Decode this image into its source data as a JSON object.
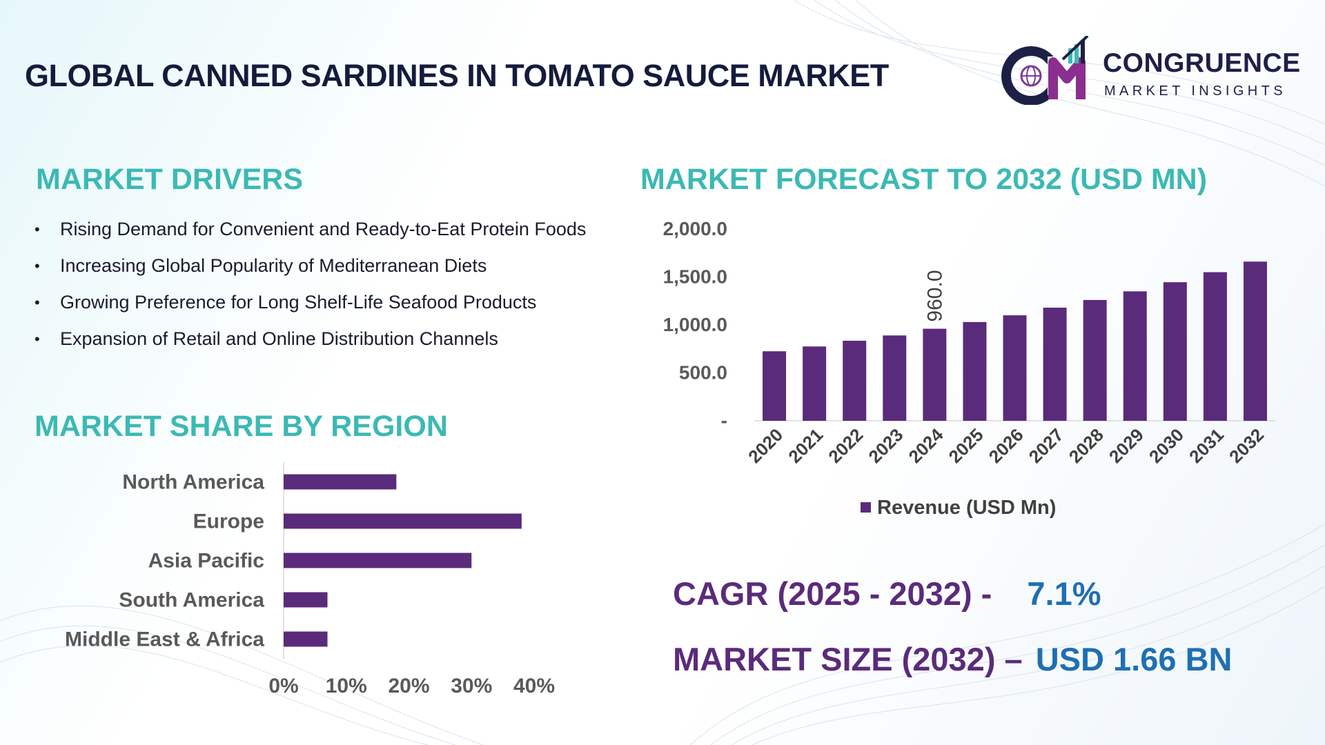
{
  "header": {
    "title": "GLOBAL CANNED SARDINES IN TOMATO SAUCE MARKET",
    "brand": {
      "name": "CONGRUENCE",
      "tagline": "MARKET INSIGHTS",
      "monogram": "CM"
    }
  },
  "drivers": {
    "heading": "MARKET DRIVERS",
    "items": [
      "Rising Demand for Convenient and Ready-to-Eat Protein Foods",
      "Increasing Global Popularity of Mediterranean Diets",
      "Growing Preference for Long Shelf-Life Seafood Products",
      "Expansion of Retail and Online Distribution Channels"
    ]
  },
  "region": {
    "heading": "MARKET SHARE BY REGION"
  },
  "forecast": {
    "heading": "MARKET FORECAST TO 2032 (USD MN)"
  },
  "kpis": {
    "cagr_label": "CAGR (2025 - 2032) -",
    "cagr_value": "7.1%",
    "size_label": "MARKET SIZE (2032) –",
    "size_value": "USD 1.66 BN"
  },
  "colors": {
    "bar": "#5b2b7b",
    "heading": "#3cb9b4",
    "title": "#141b3c",
    "kpi_value": "#1f6fb2"
  },
  "chart_data": [
    {
      "type": "bar",
      "orientation": "vertical",
      "title": "",
      "categories": [
        "2020",
        "2021",
        "2022",
        "2023",
        "2024",
        "2025",
        "2026",
        "2027",
        "2028",
        "2029",
        "2030",
        "2031",
        "2032"
      ],
      "series": [
        {
          "name": "Revenue (USD Mn)",
          "values": [
            725,
            775,
            835,
            890,
            960,
            1030,
            1100,
            1180,
            1260,
            1350,
            1445,
            1550,
            1660
          ]
        }
      ],
      "data_labels": [
        {
          "index": 4,
          "text": "960.0"
        }
      ],
      "yticks": [
        "-",
        "500.0",
        "1,000.0",
        "1,500.0",
        "2,000.0"
      ],
      "ytick_values": [
        0,
        500,
        1000,
        1500,
        2000
      ],
      "ylim": [
        0,
        2000
      ],
      "grid": false,
      "legend": "bottom"
    },
    {
      "type": "bar",
      "orientation": "horizontal",
      "title": "",
      "categories": [
        "North America",
        "Europe",
        "Asia Pacific",
        "South America",
        "Middle East & Africa"
      ],
      "values": [
        18,
        38,
        30,
        7,
        7
      ],
      "xticks": [
        "0%",
        "10%",
        "20%",
        "30%",
        "40%"
      ],
      "xtick_values": [
        0,
        10,
        20,
        30,
        40
      ],
      "xlim": [
        0,
        40
      ],
      "grid": false,
      "legend": "none"
    }
  ]
}
